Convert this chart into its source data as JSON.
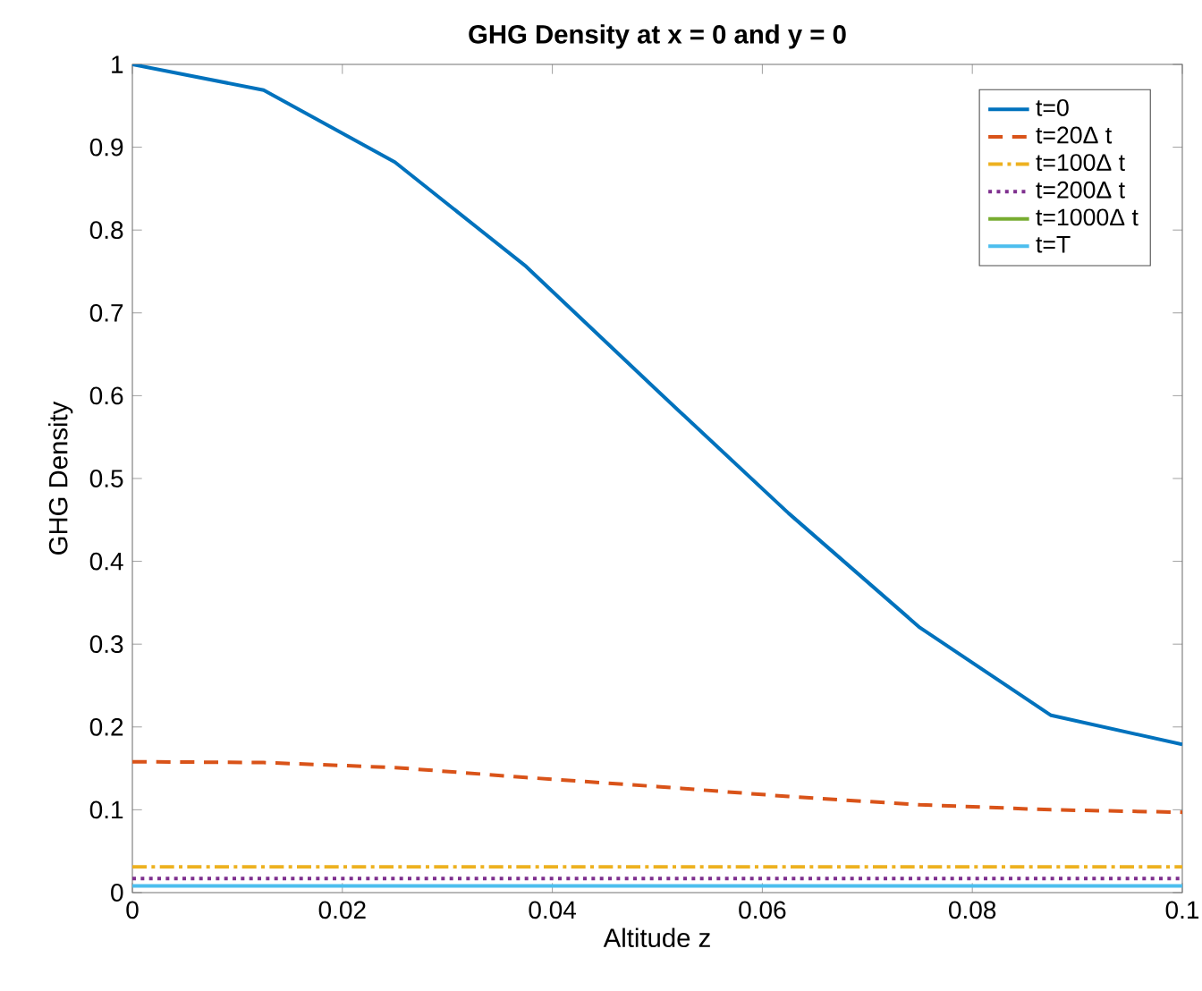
{
  "chart_data": {
    "type": "line",
    "title": "GHG Density at x = 0 and y = 0",
    "xlabel": "Altitude z",
    "ylabel": "GHG Density",
    "x": [
      0,
      0.0125,
      0.025,
      0.0375,
      0.05,
      0.0625,
      0.075,
      0.0875,
      0.1
    ],
    "series": [
      {
        "name": "t=0",
        "color": "#0072bd",
        "line_style": "solid",
        "values": [
          1.0,
          0.969,
          0.882,
          0.756,
          0.606,
          0.458,
          0.32,
          0.214,
          0.179
        ]
      },
      {
        "name": "t=20Δ t",
        "color": "#d95319",
        "line_style": "dashed",
        "values": [
          0.158,
          0.157,
          0.151,
          0.139,
          0.128,
          0.116,
          0.106,
          0.1,
          0.097
        ]
      },
      {
        "name": "t=100Δ t",
        "color": "#edb120",
        "line_style": "dashdot",
        "values": [
          0.031,
          0.031,
          0.031,
          0.031,
          0.031,
          0.031,
          0.031,
          0.031,
          0.031
        ]
      },
      {
        "name": "t=200Δ t",
        "color": "#7e2f8e",
        "line_style": "dotted",
        "values": [
          0.017,
          0.017,
          0.017,
          0.017,
          0.017,
          0.017,
          0.017,
          0.017,
          0.017
        ]
      },
      {
        "name": "t=1000Δ t",
        "color": "#77ac30",
        "line_style": "solid",
        "values": [
          null,
          null,
          null,
          null,
          null,
          null,
          null,
          null,
          null
        ]
      },
      {
        "name": "t=T",
        "color": "#4dbeee",
        "line_style": "solid",
        "values": [
          0.008,
          0.008,
          0.008,
          0.008,
          0.008,
          0.008,
          0.008,
          0.008,
          0.008
        ]
      }
    ],
    "xlim": [
      0,
      0.1
    ],
    "ylim": [
      0,
      1
    ],
    "xticks": [
      0,
      0.02,
      0.04,
      0.06,
      0.08,
      0.1
    ],
    "yticks": [
      0,
      0.1,
      0.2,
      0.3,
      0.4,
      0.5,
      0.6,
      0.7,
      0.8,
      0.9,
      1
    ],
    "grid": false,
    "legend": "top right",
    "marker": "none"
  }
}
